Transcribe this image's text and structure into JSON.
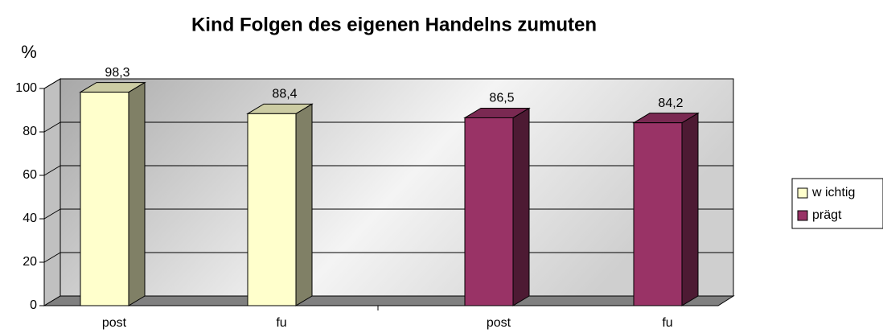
{
  "chart_data": {
    "type": "bar3d",
    "title": "Kind Folgen des eigenen Handelns zumuten",
    "y_label": "%",
    "categories": [
      "post",
      "fu",
      "post",
      "fu"
    ],
    "series": [
      {
        "name": "w ichtig",
        "color": "#ffffcc",
        "values": [
          98.3,
          88.4,
          null,
          null
        ],
        "value_labels": [
          "98,3",
          "88,4",
          null,
          null
        ]
      },
      {
        "name": "prägt",
        "color": "#993366",
        "values": [
          null,
          null,
          86.5,
          84.2
        ],
        "value_labels": [
          null,
          null,
          "86,5",
          "84,2"
        ]
      }
    ],
    "ylim": [
      0,
      100
    ],
    "yticks": [
      0,
      20,
      40,
      60,
      80,
      100
    ],
    "grid": true,
    "legend": "right"
  }
}
